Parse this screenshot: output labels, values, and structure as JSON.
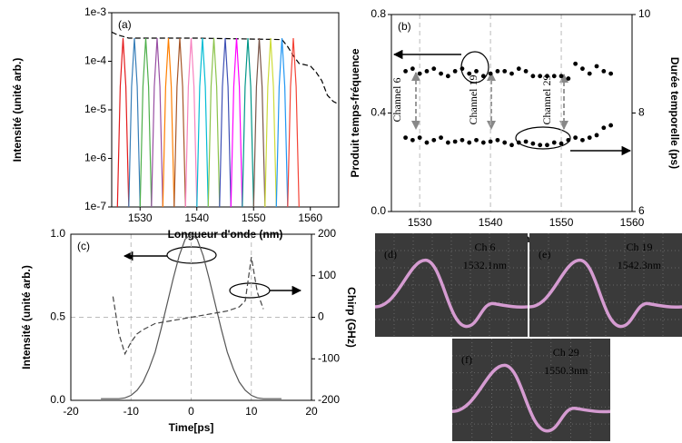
{
  "chart_data": [
    {
      "type": "line",
      "label": "(a)",
      "xlabel": "Longueur d'onde (nm)",
      "ylabel": "Intensité  (unité arb.)",
      "log_y": true,
      "xlim": [
        1525,
        1565
      ],
      "xticks": [
        1530,
        1540,
        1550,
        1560
      ],
      "ylim": [
        1e-07,
        0.001
      ],
      "yticks": [
        {
          "value": 0.001,
          "label": "1e-3"
        },
        {
          "value": 0.0001,
          "label": "1e-4"
        },
        {
          "value": 1e-05,
          "label": "1e-5"
        },
        {
          "value": 1e-06,
          "label": "1e-6"
        },
        {
          "value": 1e-07,
          "label": "1e-7"
        }
      ],
      "series": [
        {
          "color": "#000000",
          "dash": true,
          "x": [
            1525,
            1526,
            1528,
            1540,
            1555,
            1556,
            1557,
            1558,
            1560,
            1561,
            1562,
            1563,
            1564,
            1565
          ],
          "values": [
            0.0004,
            0.00035,
            0.0003,
            0.0003,
            0.00028,
            0.0002,
            0.00013,
            9e-05,
            8e-05,
            6e-05,
            4e-05,
            2e-05,
            1.5e-05,
            1.3e-05
          ]
        },
        {
          "color": "#e41a1c",
          "x": [
            1526,
            1526.5,
            1527,
            1527.5,
            1528
          ],
          "values": [
            1e-07,
            3e-05,
            0.0003,
            3e-05,
            1e-07
          ]
        },
        {
          "color": "#377eb8",
          "x": [
            1528,
            1528.5,
            1529,
            1529.5,
            1530
          ],
          "values": [
            1e-07,
            3e-05,
            0.0003,
            3e-05,
            1e-07
          ]
        },
        {
          "color": "#4daf4a",
          "x": [
            1530,
            1530.5,
            1531,
            1531.5,
            1532
          ],
          "values": [
            1e-07,
            3e-05,
            0.0003,
            3e-05,
            1e-07
          ]
        },
        {
          "color": "#984ea3",
          "x": [
            1532,
            1532.5,
            1533,
            1533.5,
            1534
          ],
          "values": [
            1e-07,
            3e-05,
            0.0003,
            3e-05,
            1e-07
          ]
        },
        {
          "color": "#ff7f00",
          "x": [
            1534,
            1534.5,
            1535,
            1535.5,
            1536
          ],
          "values": [
            1e-07,
            3e-05,
            0.0003,
            3e-05,
            1e-07
          ]
        },
        {
          "color": "#a65628",
          "x": [
            1536,
            1536.5,
            1537,
            1537.5,
            1538
          ],
          "values": [
            1e-07,
            3e-05,
            0.0003,
            3e-05,
            1e-07
          ]
        },
        {
          "color": "#f781bf",
          "x": [
            1538,
            1538.5,
            1539,
            1539.5,
            1540
          ],
          "values": [
            1e-07,
            3e-05,
            0.0003,
            3e-05,
            1e-07
          ]
        },
        {
          "color": "#00bcd4",
          "x": [
            1540,
            1540.5,
            1541,
            1541.5,
            1542
          ],
          "values": [
            1e-07,
            3e-05,
            0.0003,
            3e-05,
            1e-07
          ]
        },
        {
          "color": "#8bc34a",
          "x": [
            1542,
            1542.5,
            1543,
            1543.5,
            1544
          ],
          "values": [
            1e-07,
            3e-05,
            0.0003,
            3e-05,
            1e-07
          ]
        },
        {
          "color": "#3f51b5",
          "x": [
            1544,
            1544.5,
            1545,
            1545.5,
            1546
          ],
          "values": [
            1e-07,
            3e-05,
            0.0003,
            3e-05,
            1e-07
          ]
        },
        {
          "color": "#ff00ff",
          "x": [
            1546,
            1546.5,
            1547,
            1547.5,
            1548
          ],
          "values": [
            1e-07,
            3e-05,
            0.0003,
            3e-05,
            1e-07
          ]
        },
        {
          "color": "#009688",
          "x": [
            1548,
            1548.5,
            1549,
            1549.5,
            1550
          ],
          "values": [
            1e-07,
            3e-05,
            0.0003,
            3e-05,
            1e-07
          ]
        },
        {
          "color": "#795548",
          "x": [
            1550,
            1550.5,
            1551,
            1551.5,
            1552
          ],
          "values": [
            1e-07,
            3e-05,
            0.0003,
            3e-05,
            1e-07
          ]
        },
        {
          "color": "#cddc39",
          "x": [
            1552,
            1552.5,
            1553,
            1553.5,
            1554
          ],
          "values": [
            1e-07,
            3e-05,
            0.0003,
            3e-05,
            1e-07
          ]
        },
        {
          "color": "#2196f3",
          "x": [
            1554,
            1554.5,
            1555,
            1555.5,
            1556
          ],
          "values": [
            1e-07,
            3e-05,
            0.0003,
            3e-05,
            1e-07
          ]
        },
        {
          "color": "#f44336",
          "x": [
            1556,
            1556.5,
            1557,
            1557.5,
            1558
          ],
          "values": [
            1e-07,
            3e-05,
            0.0003,
            3e-05,
            1e-07
          ]
        }
      ]
    },
    {
      "type": "scatter",
      "label": "(b)",
      "xlabel": "Longueur d'onde (nm)",
      "ylabel": "Produit temps-fréquence",
      "y2label": "Durée temporelle  (ps)",
      "annotations": [
        "Channel 6",
        "Channel 19",
        "Channel 29"
      ],
      "xlim": [
        1526,
        1560
      ],
      "xticks": [
        1530,
        1540,
        1550,
        1560
      ],
      "grid": "x",
      "ylim": [
        0,
        0.8
      ],
      "yticks": [
        {
          "value": 0,
          "label": "0.0"
        },
        0.4,
        0.8
      ],
      "y2lim": [
        6,
        10
      ],
      "y2ticks": [
        6,
        8,
        10
      ],
      "series": [
        {
          "color": "#000000",
          "x": [
            1528,
            1529,
            1530,
            1531,
            1532,
            1533,
            1534,
            1535,
            1536,
            1537,
            1538,
            1539,
            1540,
            1541,
            1542,
            1543,
            1544,
            1545,
            1546,
            1547,
            1548,
            1549,
            1550,
            1551,
            1552,
            1553,
            1554,
            1555,
            1556,
            1557
          ],
          "values": [
            0.57,
            0.58,
            0.56,
            0.57,
            0.58,
            0.56,
            0.55,
            0.57,
            0.58,
            0.56,
            0.57,
            0.55,
            0.56,
            0.57,
            0.57,
            0.56,
            0.58,
            0.57,
            0.55,
            0.55,
            0.55,
            0.55,
            0.55,
            0.54,
            0.6,
            0.58,
            0.56,
            0.59,
            0.57,
            0.56
          ]
        },
        {
          "color": "#000000",
          "axis": "y2",
          "x": [
            1528,
            1529,
            1530,
            1531,
            1532,
            1533,
            1534,
            1535,
            1536,
            1537,
            1538,
            1539,
            1540,
            1541,
            1542,
            1543,
            1544,
            1545,
            1546,
            1547,
            1548,
            1549,
            1550,
            1551,
            1552,
            1553,
            1554,
            1555,
            1556,
            1557
          ],
          "values": [
            7.5,
            7.45,
            7.5,
            7.4,
            7.45,
            7.5,
            7.4,
            7.42,
            7.45,
            7.4,
            7.45,
            7.4,
            7.42,
            7.45,
            7.4,
            7.35,
            7.4,
            7.42,
            7.38,
            7.35,
            7.35,
            7.4,
            7.38,
            7.45,
            7.5,
            7.45,
            7.5,
            7.55,
            7.7,
            7.75
          ]
        }
      ]
    },
    {
      "type": "line",
      "label": "(c)",
      "xlabel": "Time[ps]",
      "ylabel": "Intensité  (unité arb.)",
      "y2label": "Chirp (GHz)",
      "xlim": [
        -20,
        20
      ],
      "xticks": [
        -20,
        -10,
        0,
        10,
        20
      ],
      "grid": "both",
      "ylim": [
        0,
        1
      ],
      "yticks": [
        {
          "value": 0,
          "label": "0.0"
        },
        0.5,
        {
          "value": 1,
          "label": "1.0"
        }
      ],
      "y2lim": [
        -200,
        200
      ],
      "y2ticks": [
        -200,
        -100,
        0,
        100,
        200
      ],
      "series": [
        {
          "color": "#555555",
          "x": [
            -15,
            -14,
            -13,
            -12,
            -11,
            -10,
            -9,
            -8,
            -7,
            -6,
            -5,
            -4,
            -3,
            -2,
            -1,
            0,
            1,
            2,
            3,
            4,
            5,
            6,
            7,
            8,
            9,
            10,
            11,
            12,
            13,
            14,
            15
          ],
          "values": [
            0.01,
            0.01,
            0.01,
            0.01,
            0.015,
            0.03,
            0.06,
            0.11,
            0.19,
            0.29,
            0.43,
            0.58,
            0.73,
            0.87,
            0.97,
            1.0,
            0.97,
            0.87,
            0.73,
            0.58,
            0.43,
            0.29,
            0.19,
            0.11,
            0.06,
            0.03,
            0.015,
            0.01,
            0.01,
            0.01,
            0.01
          ]
        },
        {
          "color": "#444444",
          "dash": true,
          "axis": "y2",
          "x": [
            -13,
            -12,
            -11,
            -10,
            -9,
            -8,
            -6,
            -4,
            -2,
            0,
            2,
            4,
            6,
            8,
            9,
            10,
            11,
            12
          ],
          "values": [
            50,
            -40,
            -88,
            -60,
            -40,
            -30,
            -15,
            -10,
            -5,
            0,
            5,
            10,
            15,
            25,
            40,
            145,
            60,
            20
          ]
        }
      ]
    }
  ],
  "scope_panels": [
    {
      "label": "(d)",
      "channel": "Ch 6",
      "wavelength": "1532.1nm"
    },
    {
      "label": "(e)",
      "channel": "Ch 19",
      "wavelength": "1542.3nm"
    },
    {
      "label": "(f)",
      "channel": "Ch 29",
      "wavelength": "1550.3nm"
    }
  ]
}
